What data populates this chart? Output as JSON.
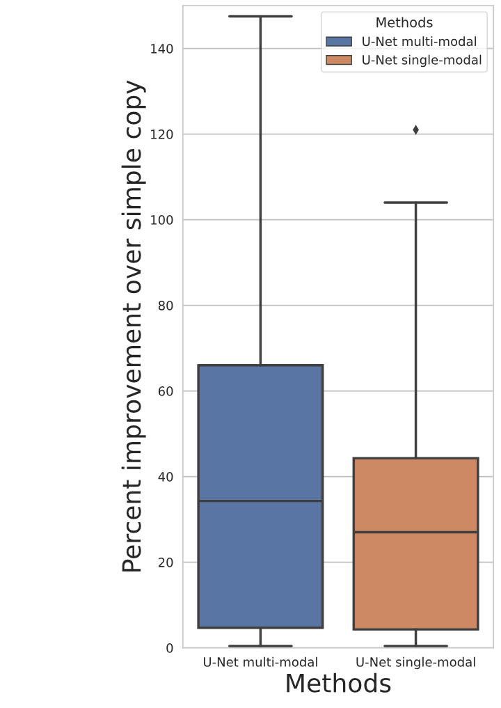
{
  "chart_data": {
    "type": "box",
    "xlabel": "Methods",
    "ylabel": "Percent improvement over simple copy",
    "legend_title": "Methods",
    "categories": [
      "U-Net multi-modal",
      "U-Net single-modal"
    ],
    "series": [
      {
        "name": "U-Net multi-modal",
        "color": "#5875a4",
        "boxes": [
          {
            "low": 0.4,
            "q1": 4.7,
            "median": 34.3,
            "q3": 66.0,
            "high": 147.5
          },
          null
        ]
      },
      {
        "name": "U-Net single-modal",
        "color": "#cc8963",
        "boxes": [
          null,
          {
            "low": 0.4,
            "q1": 4.3,
            "median": 27.0,
            "q3": 44.3,
            "high": 104,
            "outliers": [
              121
            ]
          }
        ]
      }
    ],
    "ylim": [
      0,
      150
    ],
    "yticks": [
      0,
      20,
      40,
      60,
      80,
      100,
      120,
      140
    ],
    "grid": "y",
    "legend": "top right",
    "marker": "diamond"
  }
}
